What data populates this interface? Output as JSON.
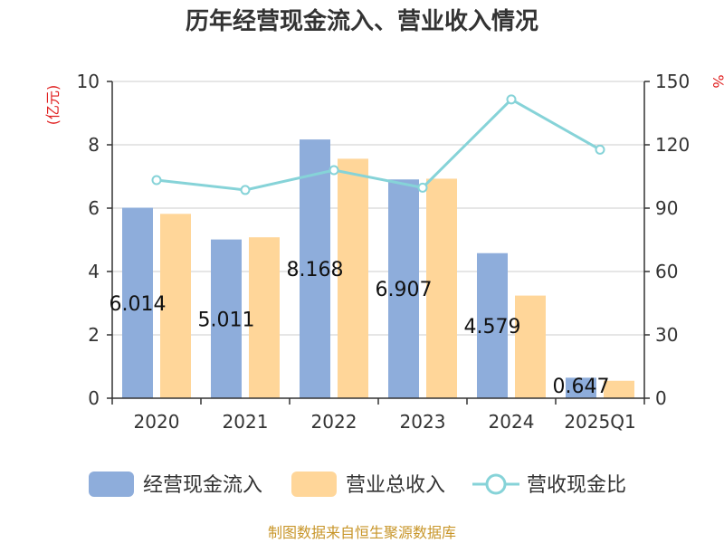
{
  "chart_data": {
    "type": "bar",
    "title": "历年经营现金流入、营业收入情况",
    "y_left_label": "(亿元)",
    "y_right_label": "%",
    "categories": [
      "2020",
      "2021",
      "2022",
      "2023",
      "2024",
      "2025Q1"
    ],
    "ylim_left": [
      0,
      10
    ],
    "ylim_right": [
      0,
      150
    ],
    "left_ticks": [
      "0",
      "2",
      "4",
      "6",
      "8",
      "10"
    ],
    "right_ticks": [
      "0",
      "30",
      "60",
      "90",
      "120",
      "150"
    ],
    "series": [
      {
        "name": "经营现金流入",
        "type": "bar",
        "axis": "left",
        "color": "#8EADDB",
        "values": [
          6.014,
          5.011,
          8.168,
          6.907,
          4.579,
          0.647
        ]
      },
      {
        "name": "营业总收入",
        "type": "bar",
        "axis": "left",
        "color": "#FFD699",
        "values": [
          5.82,
          5.08,
          7.56,
          6.93,
          3.24,
          0.55
        ]
      },
      {
        "name": "营收现金比",
        "type": "line",
        "axis": "right",
        "color": "#86D3D8",
        "values": [
          103.3,
          98.6,
          108.0,
          99.7,
          141.5,
          117.7
        ]
      }
    ],
    "data_labels": [
      "6.014",
      "5.011",
      "8.168",
      "6.907",
      "4.579",
      "0.647"
    ],
    "grid": true,
    "legend_position": "bottom"
  },
  "footer": "制图数据来自恒生聚源数据库"
}
